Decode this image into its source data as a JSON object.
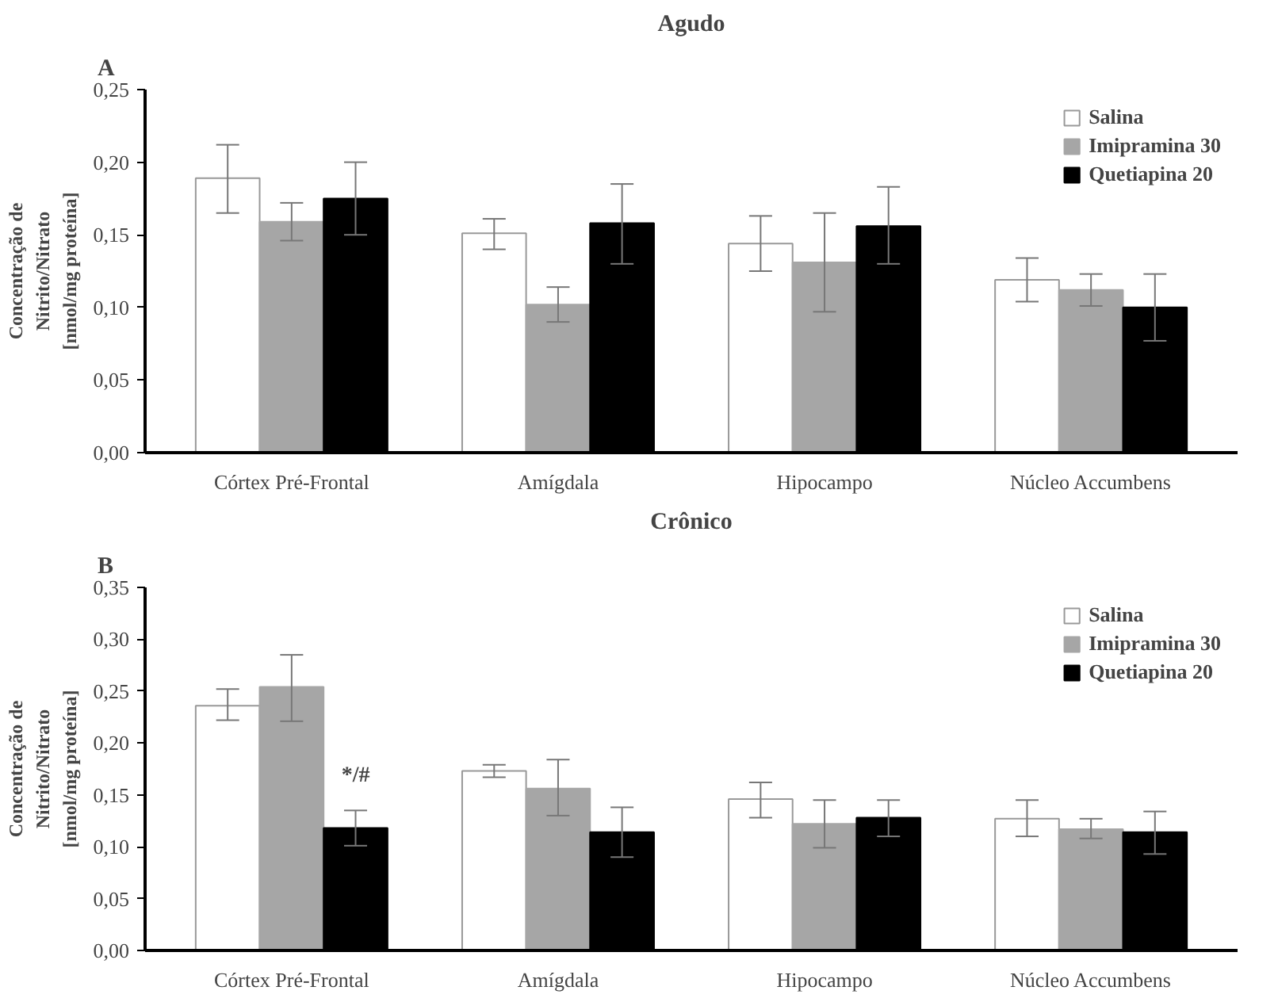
{
  "chart_data": [
    {
      "type": "bar",
      "title": "Agudo",
      "ylabel": "Concentração de\nNitrito/Nitrato\n[nmol/mg proteína]",
      "categories": [
        "Córtex Pré-Frontal",
        "Amígdala",
        "Hipocampo",
        "Núcleo Accumbens"
      ],
      "series": [
        {
          "name": "Salina",
          "color": "#ffffff",
          "values": [
            0.189,
            0.151,
            0.144,
            0.119
          ],
          "errors": [
            [
              0.165,
              0.212
            ],
            [
              0.14,
              0.161
            ],
            [
              0.125,
              0.163
            ],
            [
              0.104,
              0.134
            ]
          ]
        },
        {
          "name": "Imipramina 30",
          "color": "#a6a6a6",
          "values": [
            0.159,
            0.102,
            0.131,
            0.112
          ],
          "errors": [
            [
              0.146,
              0.172
            ],
            [
              0.09,
              0.114
            ],
            [
              0.097,
              0.165
            ],
            [
              0.101,
              0.123
            ]
          ]
        },
        {
          "name": "Quetiapina 20",
          "color": "#000000",
          "values": [
            0.175,
            0.158,
            0.156,
            0.1
          ],
          "errors": [
            [
              0.15,
              0.2
            ],
            [
              0.13,
              0.185
            ],
            [
              0.13,
              0.183
            ],
            [
              0.077,
              0.123
            ]
          ]
        }
      ],
      "ylim": [
        0,
        0.25
      ],
      "yticks": [
        {
          "value": 0,
          "label": "0,00"
        },
        {
          "value": 0.05,
          "label": "0,05"
        },
        {
          "value": 0.1,
          "label": "0,10"
        },
        {
          "value": 0.15,
          "label": "0,15"
        },
        {
          "value": 0.2,
          "label": "0,20"
        },
        {
          "value": 0.25,
          "label": "0,25"
        }
      ],
      "legend": "top right",
      "grid": false,
      "annotations": [
        "A"
      ]
    },
    {
      "type": "bar",
      "title": "Crônico",
      "ylabel": "Concentração de\nNitrito/Nitrato\n[nmol/mg proteína]",
      "categories": [
        "Córtex Pré-Frontal",
        "Amígdala",
        "Hipocampo",
        "Núcleo Accumbens"
      ],
      "series": [
        {
          "name": "Salina",
          "color": "#ffffff",
          "values": [
            0.236,
            0.173,
            0.146,
            0.127
          ],
          "errors": [
            [
              0.222,
              0.252
            ],
            [
              0.167,
              0.179
            ],
            [
              0.128,
              0.162
            ],
            [
              0.11,
              0.145
            ]
          ]
        },
        {
          "name": "Imipramina 30",
          "color": "#a6a6a6",
          "values": [
            0.254,
            0.156,
            0.122,
            0.117
          ],
          "errors": [
            [
              0.221,
              0.285
            ],
            [
              0.13,
              0.184
            ],
            [
              0.099,
              0.145
            ],
            [
              0.108,
              0.127
            ]
          ]
        },
        {
          "name": "Quetiapina 20",
          "color": "#000000",
          "values": [
            0.118,
            0.114,
            0.128,
            0.114
          ],
          "errors": [
            [
              0.101,
              0.135
            ],
            [
              0.09,
              0.138
            ],
            [
              0.11,
              0.145
            ],
            [
              0.093,
              0.134
            ]
          ]
        }
      ],
      "ylim": [
        0,
        0.35
      ],
      "yticks": [
        {
          "value": 0,
          "label": "0,00"
        },
        {
          "value": 0.05,
          "label": "0,05"
        },
        {
          "value": 0.1,
          "label": "0,10"
        },
        {
          "value": 0.15,
          "label": "0,15"
        },
        {
          "value": 0.2,
          "label": "0,20"
        },
        {
          "value": 0.25,
          "label": "0,25"
        },
        {
          "value": 0.3,
          "label": "0,30"
        },
        {
          "value": 0.35,
          "label": "0,35"
        }
      ],
      "legend": "top right",
      "grid": false,
      "annotations": [
        "B",
        "*/#"
      ]
    }
  ]
}
